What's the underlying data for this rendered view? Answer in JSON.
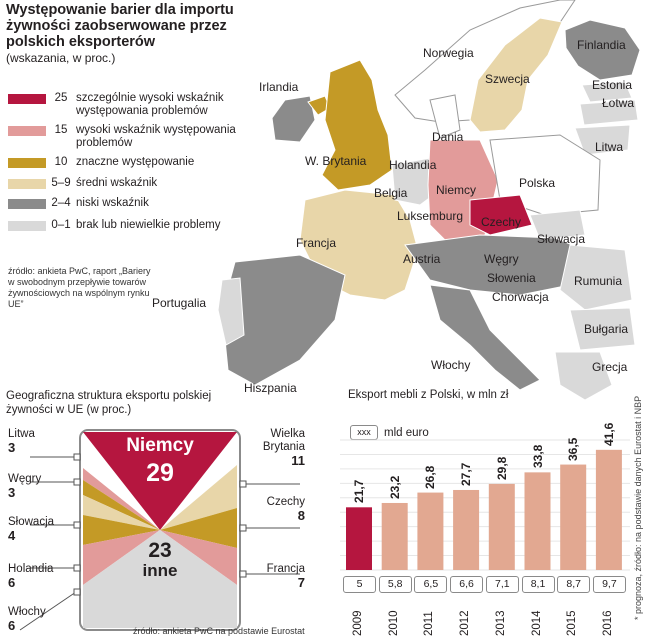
{
  "colors": {
    "c25": "#b5163f",
    "c15": "#e29b9a",
    "c10": "#c49a26",
    "c59": "#e8d6a9",
    "c24": "#8b8b8b",
    "c01": "#d9d9d9",
    "bar2009": "#b5163f",
    "bar": "#e2a891"
  },
  "map": {
    "title": "Występowanie barier dla importu żywności zaobserwowane przez polskich eksporterów",
    "subtitle": "(wskazania, w proc.)",
    "legend": [
      {
        "range": "25",
        "label": "szczególnie wysoki wskaźnik występowania problemów",
        "color": "#b5163f"
      },
      {
        "range": "15",
        "label": "wysoki wskaźnik występowania problemów",
        "color": "#e29b9a"
      },
      {
        "range": "10",
        "label": "znaczne występowanie",
        "color": "#c49a26"
      },
      {
        "range": "5–9",
        "label": "średni wskaźnik",
        "color": "#e8d6a9"
      },
      {
        "range": "2–4",
        "label": "niski wskaźnik",
        "color": "#8b8b8b"
      },
      {
        "range": "0–1",
        "label": "brak lub niewielkie problemy",
        "color": "#d9d9d9"
      }
    ],
    "source": "źródło: ankieta PwC, raport „Bariery w swobodnym przepływie towarów żywnościowych na wspólnym rynku UE”",
    "countries": {
      "irlandia": "Irlandia",
      "norwegia": "Norwegia",
      "szwecja": "Szwecja",
      "finlandia": "Finlandia",
      "estonia": "Estonia",
      "lotwa": "Łotwa",
      "litwa": "Litwa",
      "dania": "Dania",
      "wbrytania": "W. Brytania",
      "holandia": "Holandia",
      "belgia": "Belgia",
      "niemcy": "Niemcy",
      "polska": "Polska",
      "luksemburg": "Luksemburg",
      "czechy": "Czechy",
      "slowacja": "Słowacja",
      "francja": "Francja",
      "austria": "Austria",
      "wegry": "Węgry",
      "slowenia": "Słowenia",
      "chorwacja": "Chorwacja",
      "rumunia": "Rumunia",
      "bulgaria": "Bułgaria",
      "portugalia": "Portugalia",
      "wlochy": "Włochy",
      "hiszpania": "Hiszpania",
      "grecja": "Grecja"
    }
  },
  "structure": {
    "title": "Geograficzna struktura eksportu polskiej żywności w UE (w proc.)",
    "center_top_label": "Niemcy",
    "center_top_value": "29",
    "center_bottom_value": "23",
    "center_bottom_label": "inne",
    "left": [
      {
        "name": "Litwa",
        "value": "3"
      },
      {
        "name": "Węgry",
        "value": "3"
      },
      {
        "name": "Słowacja",
        "value": "4"
      },
      {
        "name": "Holandia",
        "value": "6"
      },
      {
        "name": "Włochy",
        "value": "6"
      }
    ],
    "right": [
      {
        "name": "Wielka Brytania",
        "value": "11"
      },
      {
        "name": "Czechy",
        "value": "8"
      },
      {
        "name": "Francja",
        "value": "7"
      }
    ],
    "source": "źródło: ankieta PwC na podstawie Eurostat"
  },
  "chart_data": {
    "type": "bar",
    "title": "Eksport mebli z Polski, w mln zł",
    "legend_label": "mld euro",
    "legend_symbol": "xxx",
    "categories": [
      "2009",
      "2010",
      "2011",
      "2012",
      "2013",
      "2014",
      "2015",
      "2016"
    ],
    "values": [
      21.7,
      23.2,
      26.8,
      27.7,
      29.8,
      33.8,
      36.5,
      41.6
    ],
    "value_labels": [
      "21,7",
      "23,2",
      "26,8",
      "27,7",
      "29,8",
      "33,8",
      "36,5",
      "41,6"
    ],
    "euro_labels": [
      "5",
      "5,8",
      "6,5",
      "6,6",
      "7,1",
      "8,1",
      "8,7",
      "9,7"
    ],
    "ylim": [
      0,
      45
    ],
    "grid": true,
    "note": "* prognoza, źródło: na podstawie danych Eurostat i NBP"
  }
}
